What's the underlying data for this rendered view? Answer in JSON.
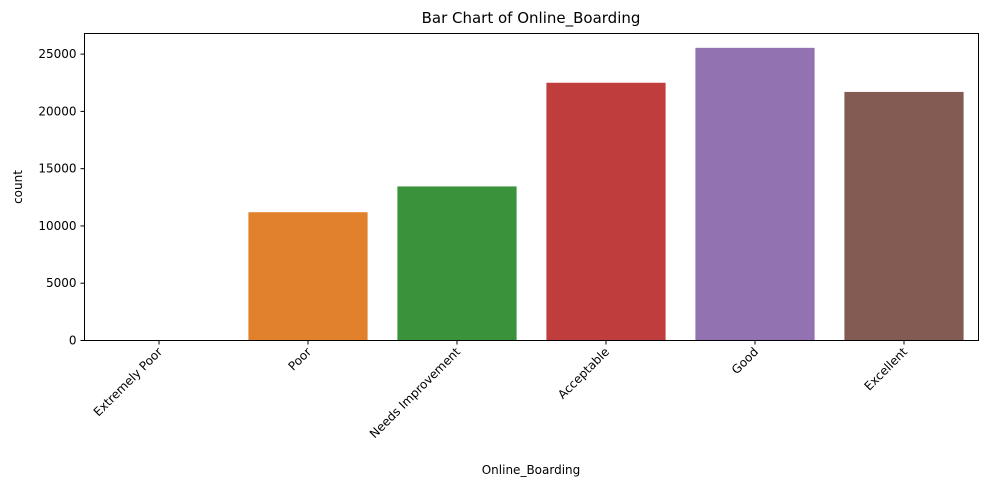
{
  "chart_data": {
    "type": "bar",
    "title": "Bar Chart of Online_Boarding",
    "xlabel": "Online_Boarding",
    "ylabel": "count",
    "categories": [
      "Extremely Poor",
      "Poor",
      "Needs Improvement",
      "Acceptable",
      "Good",
      "Excellent"
    ],
    "values": [
      0,
      11200,
      13450,
      22500,
      25550,
      21700
    ],
    "colors": [
      "#1f77b4",
      "#e1812c",
      "#3a923a",
      "#c03d3e",
      "#9372b2",
      "#845b53"
    ],
    "ylim": [
      0,
      26800
    ],
    "yticks": [
      0,
      5000,
      10000,
      15000,
      20000,
      25000
    ],
    "grid": false,
    "legend": false
  }
}
